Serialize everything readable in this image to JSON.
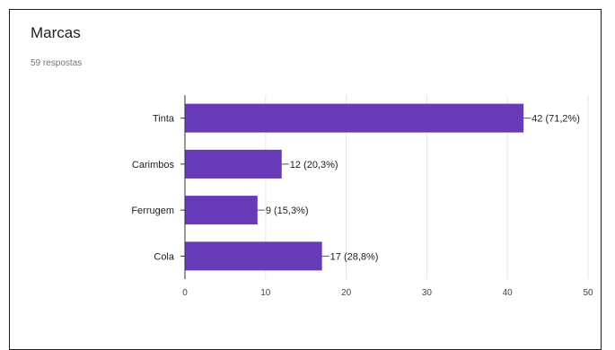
{
  "card": {
    "title": "Marcas",
    "subtitle": "59 respostas"
  },
  "colors": {
    "bar": "#673ab7",
    "grid": "#e6e6e6",
    "axis": "#333333",
    "text": "#202124"
  },
  "chart_data": {
    "type": "bar",
    "orientation": "horizontal",
    "categories": [
      "Tinta",
      "Carimbos",
      "Ferrugem",
      "Cola"
    ],
    "values": [
      42,
      12,
      9,
      17
    ],
    "data_labels": [
      "42 (71,2%)",
      "12 (20,3%)",
      "9 (15,3%)",
      "17 (28,8%)"
    ],
    "xlim": [
      0,
      50
    ],
    "xticks": [
      0,
      10,
      20,
      30,
      40,
      50
    ],
    "grid": true
  }
}
